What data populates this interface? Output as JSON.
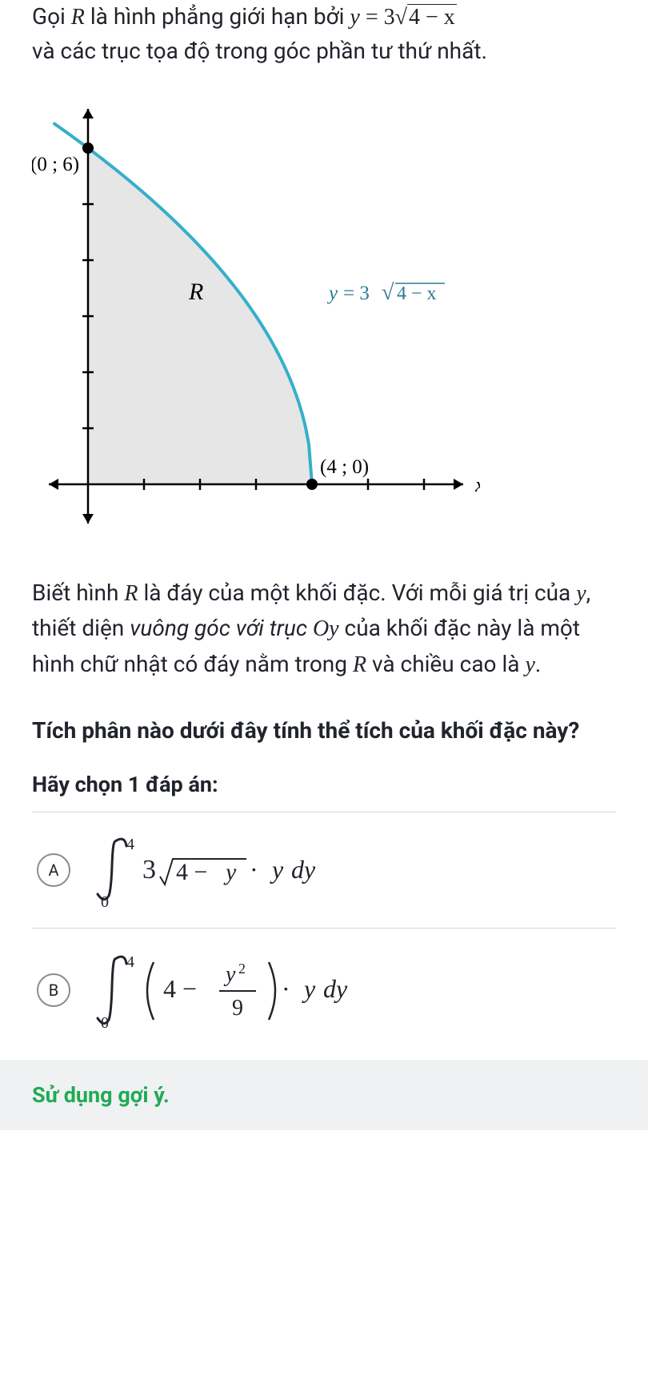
{
  "problem": {
    "line1_pre": "Gọi ",
    "var_R": "R",
    "line1_mid": " là hình phẳng giới hạn bởi ",
    "eq_lhs": "y",
    "eq_eq": " = ",
    "eq_rhs_coeff": "3",
    "eq_rhs_rad": "4 − x",
    "line2": "và các trục tọa độ trong góc phần tư thứ nhất."
  },
  "graph": {
    "y_label": "y",
    "x_label": "x",
    "region_label": "R",
    "curve_label_pre": "y = 3",
    "curve_label_rad": "4 − x",
    "pt1": "(0 ; 6)",
    "pt2": "(4 ; 0)",
    "curve_color": "#35b0c9",
    "curve_label_color": "#2a7a8f",
    "axis_color": "#000000",
    "fill_color": "#e6e6e6",
    "point_color": "#000000",
    "background": "#ffffff",
    "x_range": [
      -1,
      7
    ],
    "y_range": [
      -1,
      7
    ],
    "x_ticks": [
      1,
      2,
      3,
      4,
      5,
      6
    ],
    "y_ticks": [
      1,
      2,
      3,
      4,
      5,
      6
    ],
    "pt1_xy": [
      0,
      6
    ],
    "pt2_xy": [
      4,
      0
    ]
  },
  "description": {
    "p1": "Biết hình ",
    "var_R": "R",
    "p2": " là đáy của một khối đặc. Với mỗi giá trị của ",
    "var_y": "y",
    "p3": ", thiết diện ",
    "em1": "vuông góc với trục ",
    "var_Oy": "Oy",
    "p4": " của khối đặc này là một hình chữ nhật có đáy nằm trong ",
    "p5": " và chiều cao là ",
    "p6": "."
  },
  "question": "Tích phân nào dưới đây tính thể tích của khối đặc này?",
  "instruction": "Hãy chọn 1 đáp án:",
  "answers": {
    "A": {
      "label": "A",
      "lower": "0",
      "upper": "4",
      "coeff": "3",
      "rad": "4 − y",
      "tail": " · y dy"
    },
    "B": {
      "label": "B",
      "lower": "0",
      "upper": "4",
      "paren_a": "4 − ",
      "frac_num": "y",
      "frac_num_sup": "2",
      "frac_den": "9",
      "tail": " · y dy"
    }
  },
  "hint": "Sử dụng gợi ý.",
  "colors": {
    "text": "#21242c",
    "divider": "#d6d8da",
    "radio_border": "#898c93",
    "hint_bg": "#f0f1f2",
    "hint_text": "#1fab54"
  }
}
